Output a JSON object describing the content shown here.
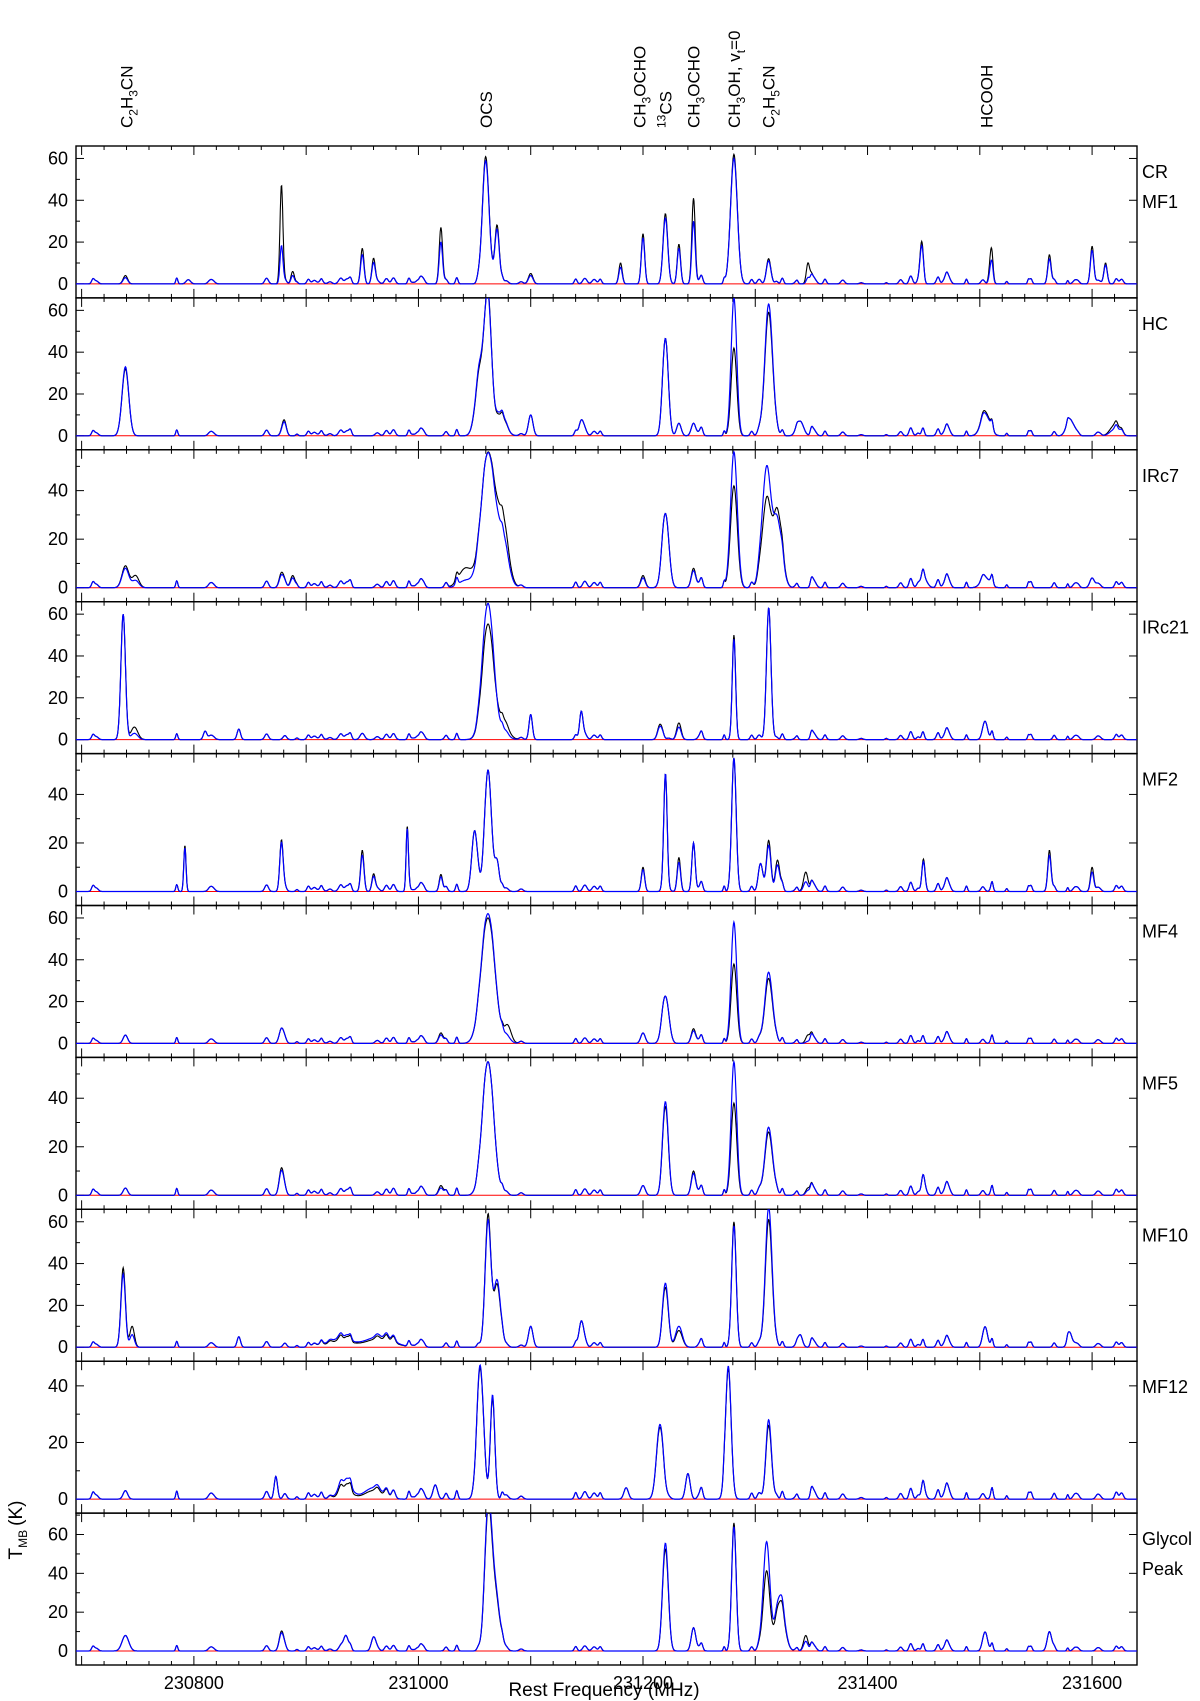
{
  "chart_data": {
    "type": "line",
    "xlabel": "Rest Frequency (MHz)",
    "ylabel": "T",
    "ylabel_sub": "MB",
    "ylabel_unit": "(K)",
    "xlim": [
      230695,
      231640
    ],
    "x_ticks": [
      230800,
      231000,
      231200,
      231400,
      231600
    ],
    "grid": false,
    "colors": {
      "observed": "#000000",
      "model": "#0000ff",
      "baseline": "#ff0000"
    },
    "line_labels": [
      {
        "main": "C",
        "s1": "2",
        "m2": "H",
        "s2": "3",
        "m3": "CN",
        "x": 230740
      },
      {
        "main": "OCS",
        "x": 231060
      },
      {
        "main": "CH",
        "s1": "3",
        "m2": "OCHO",
        "x": 231197
      },
      {
        "pre": "13",
        "main": "CS",
        "x": 231220
      },
      {
        "main": "CH",
        "s1": "3",
        "m2": "OCHO",
        "x": 231245
      },
      {
        "main": "CH",
        "s1": "3",
        "m2": "OH,  v",
        "s2": "t",
        "m3": "=0",
        "x": 231281
      },
      {
        "main": "C",
        "s1": "2",
        "m2": "H",
        "s2": "5",
        "m3": "CN",
        "x": 231312
      },
      {
        "main": "HCOOH",
        "x": 231506
      }
    ],
    "panels": [
      {
        "name": "CR",
        "name2": "MF1",
        "ylim": [
          0,
          65
        ],
        "y_ticks": [
          0,
          20,
          40,
          60
        ],
        "peaks": [
          [
            230739,
            4,
            3,
            2
          ],
          [
            230795,
            2,
            2,
            2
          ],
          [
            230878,
            47,
            18,
            1.3
          ],
          [
            230888,
            6,
            4,
            1.5
          ],
          [
            230950,
            17,
            14,
            1.5
          ],
          [
            230960,
            12,
            10,
            1.5
          ],
          [
            231020,
            27,
            20,
            1.5
          ],
          [
            231060,
            60,
            58,
            3
          ],
          [
            231070,
            28,
            26,
            2
          ],
          [
            231100,
            5,
            4,
            2
          ],
          [
            231180,
            10,
            8,
            1.5
          ],
          [
            231200,
            24,
            22,
            1.5
          ],
          [
            231220,
            33,
            31,
            2
          ],
          [
            231232,
            19,
            17,
            1.5
          ],
          [
            231245,
            41,
            30,
            1.5
          ],
          [
            231281,
            62,
            60,
            3
          ],
          [
            231312,
            11,
            10,
            2
          ],
          [
            231347,
            10,
            3,
            1.5
          ],
          [
            231448,
            18,
            16,
            1.5
          ],
          [
            231510,
            14,
            8,
            1.5
          ],
          [
            231562,
            14,
            12,
            1.5
          ],
          [
            231600,
            18,
            16,
            1.5
          ],
          [
            231612,
            10,
            9,
            1.5
          ]
        ]
      },
      {
        "name": "HC",
        "ylim": [
          0,
          65
        ],
        "y_ticks": [
          0,
          20,
          40,
          60
        ],
        "peaks": [
          [
            230739,
            32,
            33,
            3
          ],
          [
            230880,
            6,
            5,
            2
          ],
          [
            231055,
            30,
            32,
            4
          ],
          [
            231062,
            62,
            60,
            3
          ],
          [
            231072,
            10,
            11,
            5
          ],
          [
            231100,
            10,
            10,
            2
          ],
          [
            231145,
            7,
            7,
            2
          ],
          [
            231220,
            46,
            46,
            2.5
          ],
          [
            231232,
            6,
            6,
            2
          ],
          [
            231245,
            6,
            6,
            2
          ],
          [
            231281,
            42,
            66,
            2.5
          ],
          [
            231312,
            58,
            62,
            3.5
          ],
          [
            231340,
            7,
            7,
            3
          ],
          [
            231505,
            11,
            10,
            4
          ],
          [
            231580,
            8,
            8,
            3
          ],
          [
            231620,
            5,
            3,
            4
          ]
        ]
      },
      {
        "name": "IRc7",
        "ylim": [
          0,
          56
        ],
        "y_ticks": [
          0,
          20,
          40
        ],
        "peaks": [
          [
            230739,
            9,
            8,
            3
          ],
          [
            230748,
            5,
            3,
            3
          ],
          [
            230878,
            6,
            5,
            2
          ],
          [
            230888,
            5,
            4,
            2
          ],
          [
            231042,
            8,
            3,
            6
          ],
          [
            231062,
            55,
            55,
            6
          ],
          [
            231075,
            25,
            18,
            5
          ],
          [
            231200,
            5,
            4,
            2
          ],
          [
            231220,
            30,
            30,
            3
          ],
          [
            231245,
            8,
            7,
            2
          ],
          [
            231281,
            42,
            56,
            3
          ],
          [
            231310,
            35,
            48,
            4
          ],
          [
            231320,
            30,
            26,
            4
          ],
          [
            231450,
            4,
            4,
            3
          ],
          [
            231505,
            4,
            4,
            4
          ],
          [
            231600,
            4,
            4,
            2
          ]
        ]
      },
      {
        "name": "IRc21",
        "ylim": [
          0,
          65
        ],
        "y_ticks": [
          0,
          20,
          40,
          60
        ],
        "peaks": [
          [
            230737,
            60,
            60,
            2
          ],
          [
            230747,
            6,
            3,
            3
          ],
          [
            230810,
            4,
            4,
            1.5
          ],
          [
            230840,
            5,
            5,
            1.5
          ],
          [
            230950,
            3,
            3,
            2
          ],
          [
            231062,
            55,
            65,
            5
          ],
          [
            231075,
            8,
            3,
            5
          ],
          [
            231100,
            12,
            12,
            1.5
          ],
          [
            231145,
            13,
            13,
            1.5
          ],
          [
            231215,
            7,
            6,
            2
          ],
          [
            231232,
            8,
            6,
            2
          ],
          [
            231281,
            50,
            48,
            1.5
          ],
          [
            231312,
            62,
            62,
            2
          ],
          [
            231505,
            8,
            8,
            2
          ]
        ]
      },
      {
        "name": "MF2",
        "ylim": [
          0,
          56
        ],
        "y_ticks": [
          0,
          20,
          40
        ],
        "peaks": [
          [
            230792,
            19,
            18,
            1
          ],
          [
            230878,
            21,
            20,
            1.5
          ],
          [
            230950,
            17,
            15,
            1.5
          ],
          [
            230960,
            7,
            6,
            1.5
          ],
          [
            230990,
            26,
            25,
            1
          ],
          [
            231020,
            7,
            6,
            1.5
          ],
          [
            231050,
            25,
            25,
            2.5
          ],
          [
            231062,
            50,
            50,
            3
          ],
          [
            231070,
            12,
            12,
            2
          ],
          [
            231200,
            10,
            9,
            1.5
          ],
          [
            231220,
            48,
            48,
            1.5
          ],
          [
            231232,
            14,
            12,
            1.5
          ],
          [
            231245,
            20,
            20,
            1.5
          ],
          [
            231281,
            55,
            55,
            2
          ],
          [
            231305,
            10,
            10,
            2
          ],
          [
            231312,
            20,
            18,
            2
          ],
          [
            231320,
            12,
            10,
            2
          ],
          [
            231345,
            8,
            4,
            2
          ],
          [
            231450,
            10,
            9,
            1.5
          ],
          [
            231562,
            17,
            15,
            1.5
          ],
          [
            231600,
            10,
            8,
            1.5
          ]
        ]
      },
      {
        "name": "MF4",
        "ylim": [
          0,
          65
        ],
        "y_ticks": [
          0,
          20,
          40,
          60
        ],
        "peaks": [
          [
            230739,
            4,
            4,
            2
          ],
          [
            230878,
            7,
            7,
            2
          ],
          [
            231020,
            5,
            4,
            2
          ],
          [
            231062,
            60,
            62,
            6
          ],
          [
            231080,
            7,
            2,
            3
          ],
          [
            231200,
            5,
            5,
            2
          ],
          [
            231220,
            22,
            22,
            3
          ],
          [
            231245,
            7,
            6,
            2
          ],
          [
            231281,
            38,
            58,
            2.5
          ],
          [
            231312,
            30,
            33,
            3.5
          ],
          [
            231347,
            4,
            1,
            2
          ]
        ]
      },
      {
        "name": "MF5",
        "ylim": [
          0,
          56
        ],
        "y_ticks": [
          0,
          20,
          40
        ],
        "peaks": [
          [
            230739,
            3,
            3,
            2
          ],
          [
            230878,
            11,
            10,
            2
          ],
          [
            231020,
            4,
            3,
            2
          ],
          [
            231062,
            55,
            55,
            5
          ],
          [
            231200,
            4,
            4,
            2
          ],
          [
            231220,
            36,
            38,
            2.5
          ],
          [
            231245,
            10,
            9,
            2
          ],
          [
            231281,
            38,
            55,
            2.5
          ],
          [
            231312,
            25,
            27,
            3.5
          ],
          [
            231347,
            3,
            2,
            2
          ],
          [
            231450,
            5,
            5,
            2
          ]
        ]
      },
      {
        "name": "MF10",
        "ylim": [
          0,
          65
        ],
        "y_ticks": [
          0,
          20,
          40,
          60
        ],
        "peaks": [
          [
            230737,
            38,
            35,
            2
          ],
          [
            230745,
            10,
            6,
            2
          ],
          [
            230840,
            5,
            5,
            1.5
          ],
          [
            230930,
            3,
            4,
            10
          ],
          [
            230965,
            4,
            5,
            12
          ],
          [
            231062,
            63,
            60,
            2.5
          ],
          [
            231070,
            30,
            32,
            3
          ],
          [
            231100,
            10,
            10,
            2
          ],
          [
            231145,
            12,
            12,
            2
          ],
          [
            231220,
            28,
            30,
            2.5
          ],
          [
            231232,
            8,
            10,
            3
          ],
          [
            231281,
            60,
            58,
            2
          ],
          [
            231312,
            60,
            66,
            3
          ],
          [
            231340,
            6,
            6,
            2
          ],
          [
            231505,
            9,
            9,
            2
          ],
          [
            231580,
            7,
            7,
            2
          ]
        ]
      },
      {
        "name": "MF12",
        "ylim": [
          0,
          48
        ],
        "y_ticks": [
          0,
          20,
          40
        ],
        "peaks": [
          [
            230739,
            3,
            3,
            2
          ],
          [
            230873,
            8,
            8,
            1.5
          ],
          [
            230935,
            3,
            5,
            6
          ],
          [
            230960,
            3,
            4,
            8
          ],
          [
            231015,
            5,
            5,
            2
          ],
          [
            231055,
            45,
            46,
            3
          ],
          [
            231066,
            35,
            36,
            2
          ],
          [
            231185,
            4,
            4,
            2
          ],
          [
            231215,
            25,
            26,
            3
          ],
          [
            231240,
            9,
            9,
            2
          ],
          [
            231276,
            46,
            47,
            2.5
          ],
          [
            231312,
            25,
            27,
            2.5
          ],
          [
            231450,
            3,
            3,
            2
          ]
        ]
      },
      {
        "name": "Glycol",
        "name2": "Peak",
        "ylim": [
          0,
          70
        ],
        "y_ticks": [
          0,
          20,
          40,
          60
        ],
        "peaks": [
          [
            230739,
            8,
            8,
            3
          ],
          [
            230878,
            10,
            9,
            2
          ],
          [
            230935,
            6,
            6,
            2
          ],
          [
            230960,
            7,
            7,
            2
          ],
          [
            231062,
            65,
            68,
            3
          ],
          [
            231068,
            30,
            32,
            4
          ],
          [
            231220,
            52,
            55,
            2.5
          ],
          [
            231245,
            12,
            12,
            2
          ],
          [
            231281,
            66,
            64,
            2
          ],
          [
            231310,
            40,
            55,
            3
          ],
          [
            231322,
            25,
            28,
            4
          ],
          [
            231345,
            8,
            5,
            2
          ],
          [
            231505,
            9,
            9,
            2
          ],
          [
            231562,
            10,
            10,
            2
          ]
        ]
      }
    ]
  }
}
